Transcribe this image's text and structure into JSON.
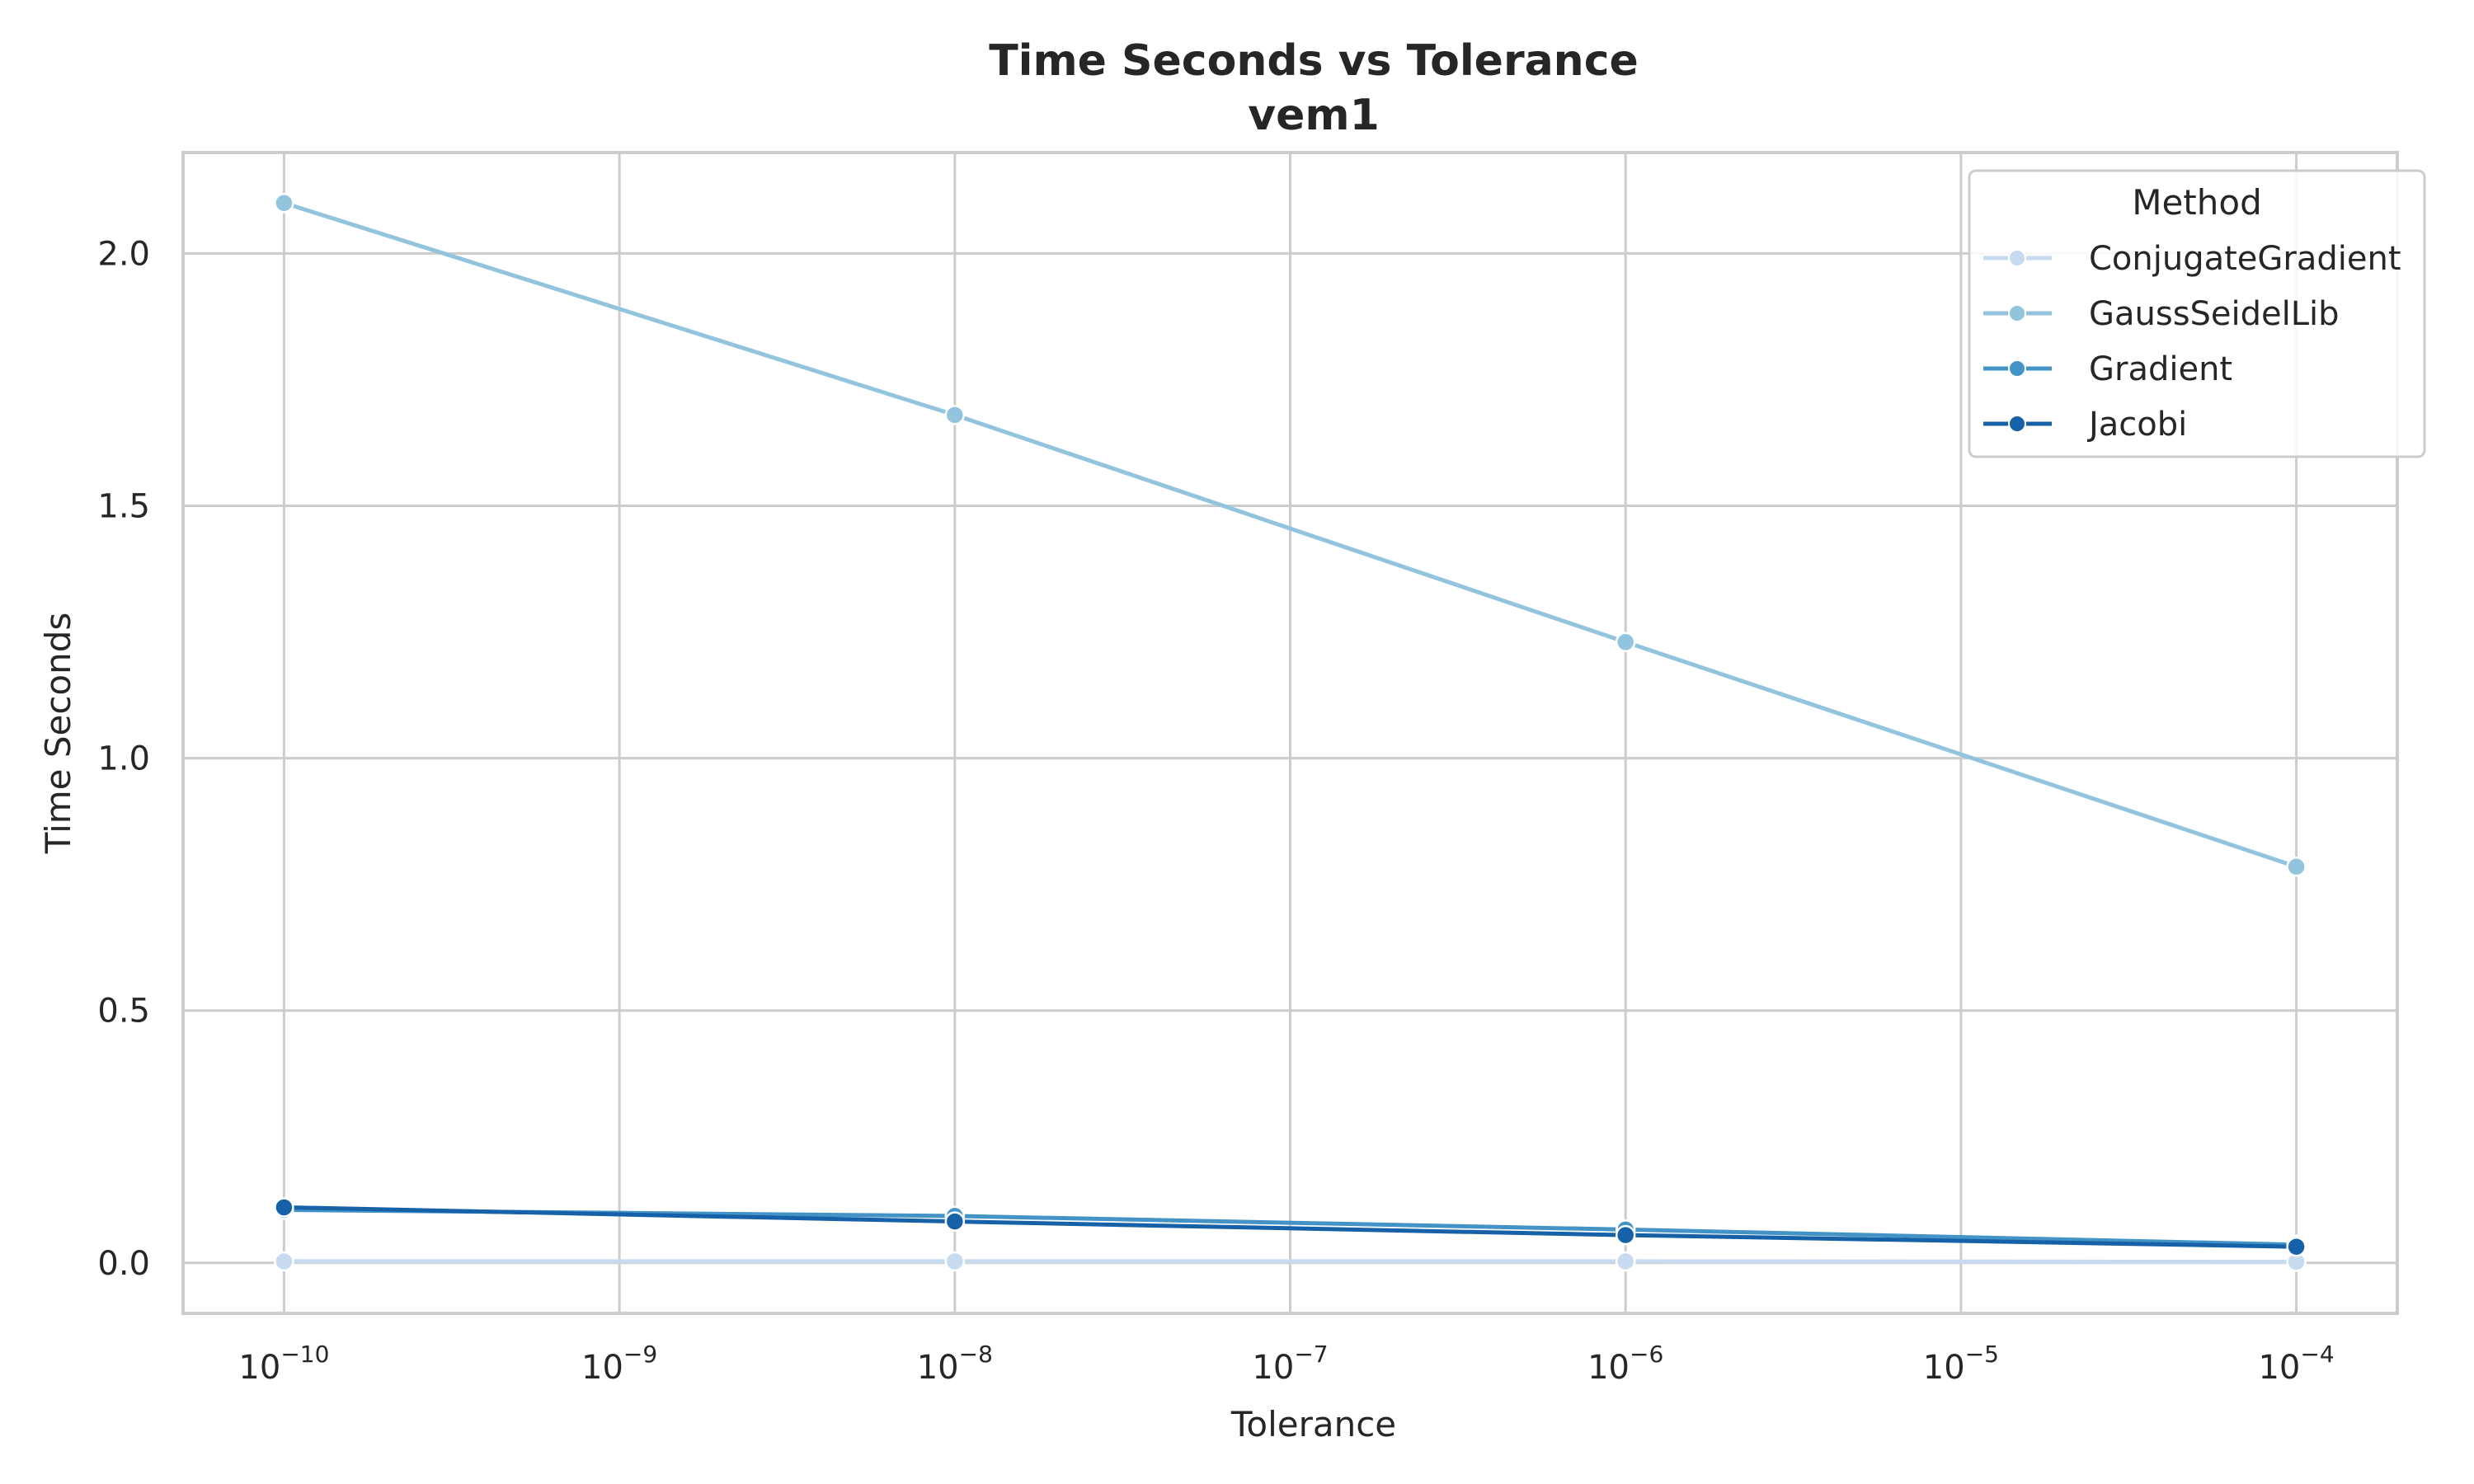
{
  "chart_data": {
    "type": "line",
    "title": "Time Seconds vs Tolerance",
    "subtitle": "vem1",
    "xlabel": "Tolerance",
    "ylabel": "Time Seconds",
    "x_scale": "log",
    "x": [
      1e-10,
      1e-08,
      1e-06,
      0.0001
    ],
    "xlim": [
      5e-11,
      0.0002
    ],
    "ylim": [
      -0.1,
      2.2
    ],
    "x_ticks": [
      {
        "value": 1e-10,
        "exp": "−10"
      },
      {
        "value": 1e-09,
        "exp": "−9"
      },
      {
        "value": 1e-08,
        "exp": "−8"
      },
      {
        "value": 1e-07,
        "exp": "−7"
      },
      {
        "value": 1e-06,
        "exp": "−6"
      },
      {
        "value": 1e-05,
        "exp": "−5"
      },
      {
        "value": 0.0001,
        "exp": "−4"
      }
    ],
    "x_tick_base": "10",
    "y_ticks": [
      {
        "value": 0.0,
        "label": "0.0"
      },
      {
        "value": 0.5,
        "label": "0.5"
      },
      {
        "value": 1.0,
        "label": "1.0"
      },
      {
        "value": 1.5,
        "label": "1.5"
      },
      {
        "value": 2.0,
        "label": "2.0"
      }
    ],
    "grid": true,
    "legend": {
      "title": "Method",
      "placement": "top-right"
    },
    "series": [
      {
        "name": "ConjugateGradient",
        "color": "#c6dbef",
        "values": [
          0.003,
          0.003,
          0.003,
          0.002
        ]
      },
      {
        "name": "GaussSeidelLib",
        "color": "#93c4de",
        "values": [
          2.1,
          1.68,
          1.23,
          0.785
        ]
      },
      {
        "name": "Gradient",
        "color": "#4493c7",
        "values": [
          0.105,
          0.093,
          0.066,
          0.036
        ]
      },
      {
        "name": "Jacobi",
        "color": "#1761a8",
        "values": [
          0.11,
          0.082,
          0.055,
          0.032
        ]
      }
    ]
  }
}
